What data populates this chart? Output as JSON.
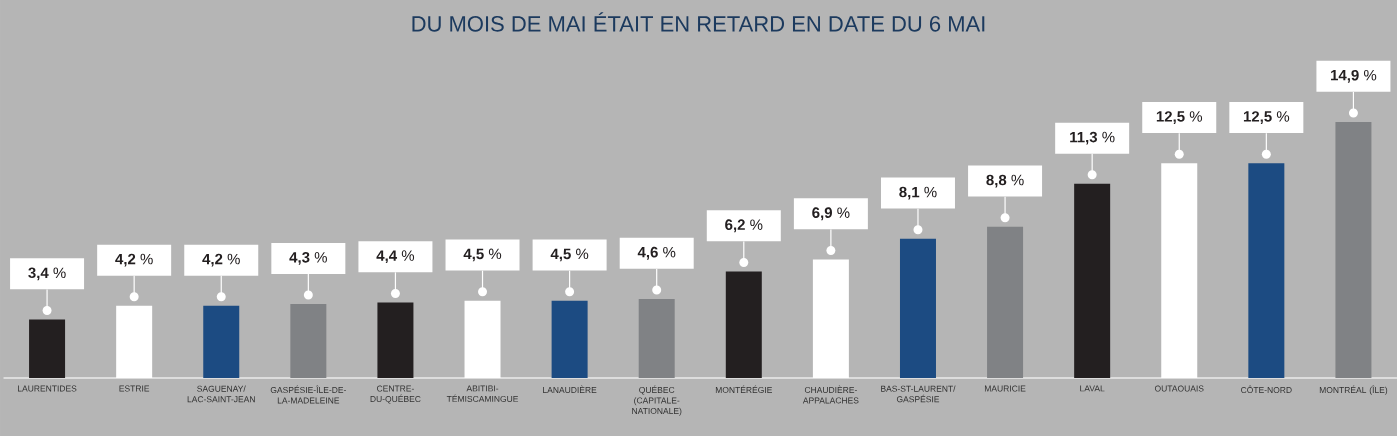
{
  "chart_data": {
    "type": "bar",
    "title": "DU MOIS DE MAI ÉTAIT EN RETARD EN DATE DU 6 MAI",
    "categories": [
      "LAURENTIDES",
      "ESTRIE",
      "SAGUENAY/ LAC-SAINT-JEAN",
      "GASPÉSIE-ÎLE-DE-LA-MADELEINE",
      "CENTRE-DU-QUÉBEC",
      "ABITIBI-TÉMISCAMINGUE",
      "LANAUDIÈRE",
      "QUÉBEC (CAPITALE-NATIONALE)",
      "MONTÉRÉGIE",
      "CHAUDIÈRE-APPALACHES",
      "BAS-ST-LAURENT/ GASPÉSIE",
      "MAURICIE",
      "LAVAL",
      "OUTAOUAIS",
      "CÔTE-NORD",
      "MONTRÉAL (ÎLE)"
    ],
    "values": [
      3.4,
      4.2,
      4.2,
      4.3,
      4.4,
      4.5,
      4.5,
      4.6,
      6.2,
      6.9,
      8.1,
      8.8,
      11.3,
      12.5,
      12.5,
      14.9
    ],
    "colors": [
      "#231f20",
      "#ffffff",
      "#1c4b82",
      "#808285",
      "#231f20",
      "#ffffff",
      "#1c4b82",
      "#808285",
      "#231f20",
      "#ffffff",
      "#1c4b82",
      "#808285",
      "#231f20",
      "#ffffff",
      "#1c4b82",
      "#808285"
    ],
    "value_labels": [
      "**3,4** %",
      "**4,2** %",
      "**4,2** %",
      "**4,3** %",
      "**4,4** %",
      "**4,5** %",
      "**4,5** %",
      "**4,6** %",
      "**6,2** %",
      "**6,9** %",
      "**8,1** %",
      "**8,8** %",
      "**11,3** %",
      "**12,5** %",
      "**12,5** %",
      "**14,9** %"
    ]
  }
}
